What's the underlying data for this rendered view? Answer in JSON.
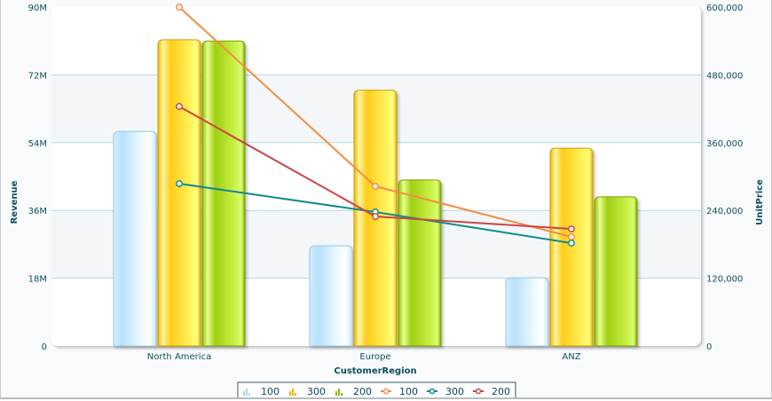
{
  "chart_data": {
    "type": "bar",
    "combo": "bar+line, dual axis",
    "title": "",
    "xlabel": "CustomerRegion",
    "ylabel": "Revenue",
    "y2label": "UnitPrice",
    "categories": [
      "North America",
      "Europe",
      "ANZ"
    ],
    "ylim": [
      0,
      90000000
    ],
    "y2lim": [
      0,
      600000
    ],
    "y_ticks": [
      "0",
      "18M",
      "36M",
      "54M",
      "72M",
      "90M"
    ],
    "y2_ticks": [
      "0",
      "120,000",
      "240,000",
      "360,000",
      "480,000",
      "600,000"
    ],
    "grid": true,
    "legend_position": "bottom",
    "series": [
      {
        "name": "100",
        "type": "bar",
        "axis": "left",
        "color": "#cdeeff",
        "values": [
          57000000,
          26600000,
          18100000
        ]
      },
      {
        "name": "300",
        "type": "bar",
        "axis": "left",
        "color": "#ffd21f",
        "values": [
          81300000,
          67900000,
          52500000
        ]
      },
      {
        "name": "200",
        "type": "bar",
        "axis": "left",
        "color": "#a8d41e",
        "values": [
          81000000,
          44100000,
          39600000
        ]
      },
      {
        "name": "100",
        "type": "line",
        "axis": "right",
        "color": "#f58c42",
        "values": [
          600000,
          282700,
          193200
        ]
      },
      {
        "name": "300",
        "type": "line",
        "axis": "right",
        "color": "#138a8a",
        "values": [
          287400,
          237200,
          182200
        ]
      },
      {
        "name": "200",
        "type": "line",
        "axis": "right",
        "color": "#cc4444",
        "values": [
          424100,
          229300,
          207300
        ]
      }
    ]
  },
  "axes": {
    "y_left": {
      "title": "Revenue",
      "ticks": [
        "0",
        "18M",
        "36M",
        "54M",
        "72M",
        "90M"
      ]
    },
    "y_right": {
      "title": "UnitPrice",
      "ticks": [
        "0",
        "120,000",
        "240,000",
        "360,000",
        "480,000",
        "600,000"
      ]
    },
    "x": {
      "title": "CustomerRegion",
      "ticks": [
        "North America",
        "Europe",
        "ANZ"
      ]
    }
  },
  "legend": {
    "items": [
      {
        "label": "100",
        "kind": "bar",
        "color": "#a9d6f5"
      },
      {
        "label": "300",
        "kind": "bar",
        "color": "#f0b400"
      },
      {
        "label": "200",
        "kind": "bar",
        "color": "#8ab800"
      },
      {
        "label": "100",
        "kind": "line",
        "color": "#f58c42"
      },
      {
        "label": "300",
        "kind": "line",
        "color": "#138a8a"
      },
      {
        "label": "200",
        "kind": "line",
        "color": "#cc4444"
      }
    ]
  }
}
